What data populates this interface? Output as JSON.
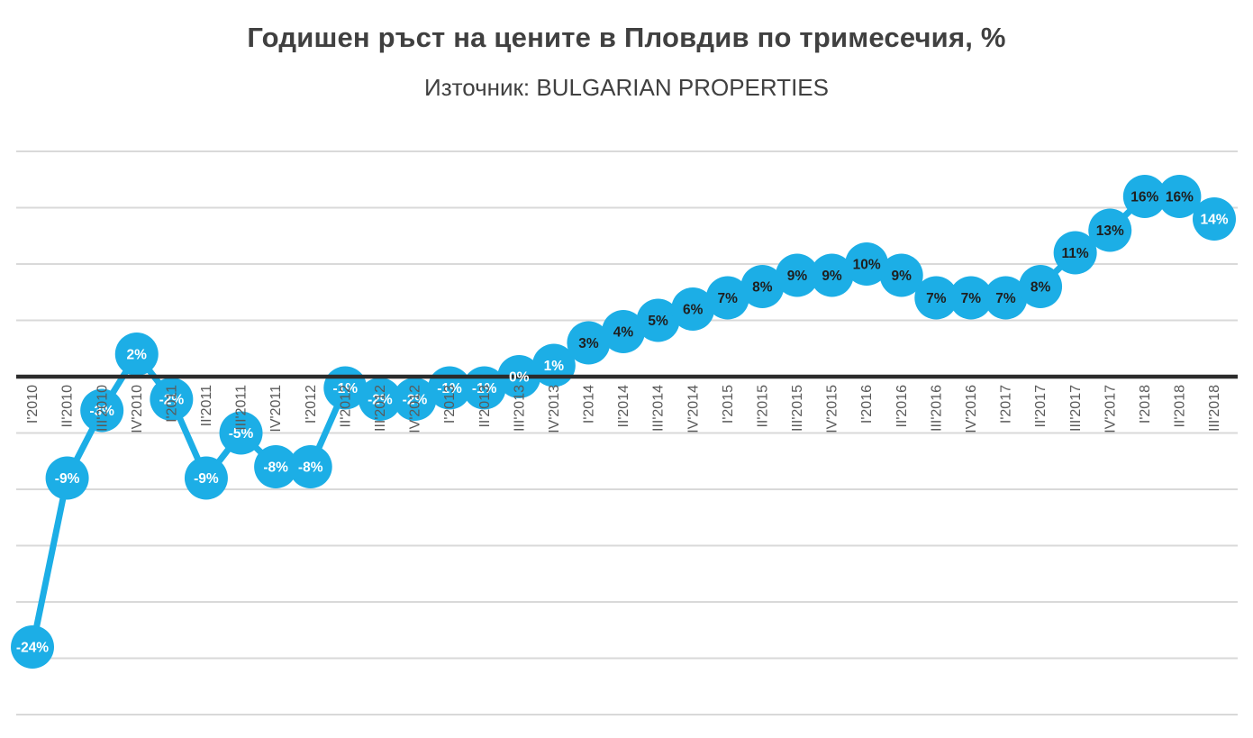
{
  "chart_data": {
    "type": "line",
    "title": "Годишен ръст на цените в Пловдив по тримесечия, %",
    "subtitle": "Източник: BULGARIAN PROPERTIES",
    "xlabel": "",
    "ylabel": "",
    "ylim": [
      -30,
      20
    ],
    "gridline_step": 5,
    "grid": true,
    "legend": "none",
    "marker_style": "large-circle",
    "categories": [
      "I'2010",
      "II'2010",
      "III'2010",
      "IV'2010",
      "I'2011",
      "II'2011",
      "III'2011",
      "IV'2011",
      "I'2012",
      "II'2012",
      "III'2012",
      "IV'2012",
      "I'2013",
      "II'2013",
      "III'2013",
      "IV'2013",
      "I'2014",
      "II'2014",
      "III'2014",
      "IV'2014",
      "I'2015",
      "II'2015",
      "III'2015",
      "IV'2015",
      "I'2016",
      "II'2016",
      "III'2016",
      "IV'2016",
      "I'2017",
      "II'2017",
      "III'2017",
      "IV'2017",
      "I'2018",
      "II'2018",
      "III'2018"
    ],
    "values": [
      -24,
      -9,
      -3,
      2,
      -2,
      -9,
      -5,
      -8,
      -8,
      -1,
      -2,
      -2,
      -1,
      -1,
      0,
      1,
      3,
      4,
      5,
      6,
      7,
      8,
      9,
      9,
      10,
      9,
      7,
      7,
      7,
      8,
      11,
      13,
      16,
      16,
      14
    ],
    "point_labels": [
      "-24%",
      "-9%",
      "-3%",
      "2%",
      "-2%",
      "-9%",
      "-5%",
      "-8%",
      "-8%",
      "-1%",
      "-2%",
      "-2%",
      "-1%",
      "-1%",
      "0%",
      "1%",
      "3%",
      "4%",
      "5%",
      "6%",
      "7%",
      "8%",
      "9%",
      "9%",
      "10%",
      "9%",
      "7%",
      "7%",
      "7%",
      "8%",
      "11%",
      "13%",
      "16%",
      "16%",
      "14%"
    ],
    "point_label_colors": [
      "white",
      "white",
      "white",
      "white",
      "white",
      "white",
      "white",
      "white",
      "white",
      "white",
      "white",
      "white",
      "white",
      "white",
      "white",
      "white",
      "dark",
      "dark",
      "dark",
      "dark",
      "dark",
      "dark",
      "dark",
      "dark",
      "dark",
      "dark",
      "dark",
      "dark",
      "dark",
      "dark",
      "dark",
      "dark",
      "dark",
      "dark",
      "white"
    ],
    "colors": {
      "marker": "#1caee6",
      "line": "#1caee6",
      "label_dark": "#1f1f1f",
      "label_white": "#ffffff",
      "gridline": "#d9d9d9",
      "zero_line": "#2b2b2b",
      "title": "#404040",
      "axis_label": "#595959"
    }
  }
}
